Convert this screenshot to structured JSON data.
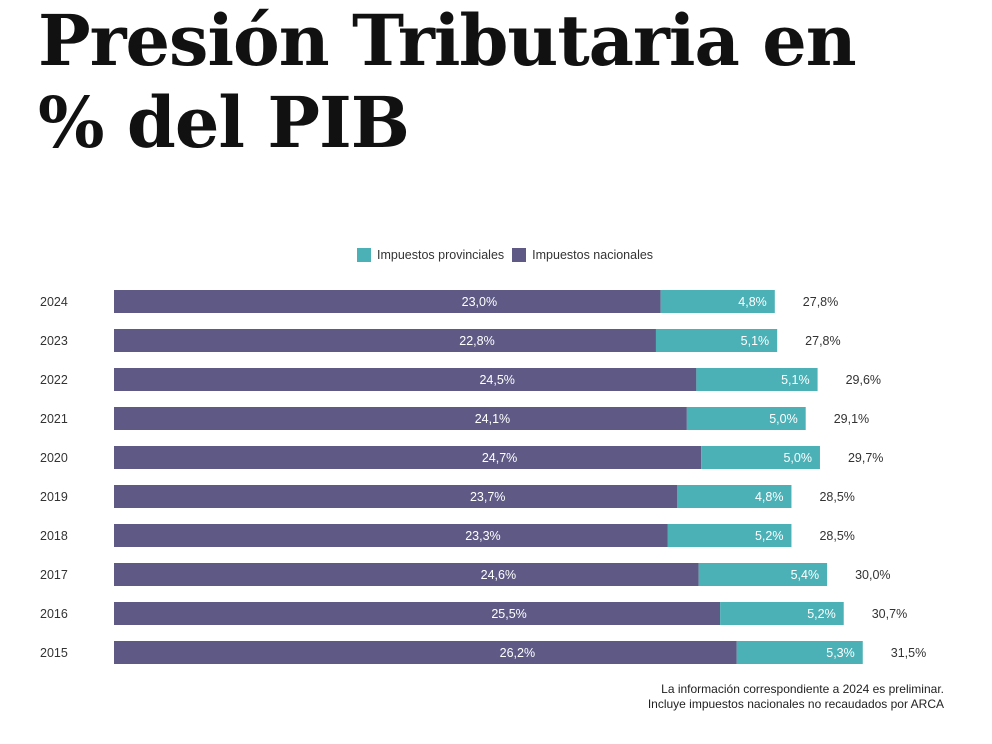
{
  "title": {
    "line1": "Presión Tributaria en",
    "line2": "% del PIB"
  },
  "colors": {
    "nacionales": "#5e5a85",
    "provinciales": "#4bb1b6"
  },
  "footnote": {
    "line1": "La información correspondiente a 2024 es preliminar.",
    "line2": "Incluye impuestos nacionales no recaudados por ARCA"
  },
  "chart_data": {
    "type": "bar",
    "orientation": "horizontal",
    "stacked": true,
    "title": "Presión Tributaria en % del PIB",
    "xlabel": "",
    "ylabel": "",
    "legend_position": "top-center",
    "grid": false,
    "categories": [
      "2024",
      "2023",
      "2022",
      "2021",
      "2020",
      "2019",
      "2018",
      "2017",
      "2016",
      "2015"
    ],
    "series": [
      {
        "name": "Impuestos nacionales",
        "values": [
          23.0,
          22.8,
          24.5,
          24.1,
          24.7,
          23.7,
          23.3,
          24.6,
          25.5,
          26.2
        ],
        "labels": [
          "23,0%",
          "22,8%",
          "24,5%",
          "24,1%",
          "24,7%",
          "23,7%",
          "23,3%",
          "24,6%",
          "25,5%",
          "26,2%"
        ]
      },
      {
        "name": "Impuestos provinciales",
        "values": [
          4.8,
          5.1,
          5.1,
          5.0,
          5.0,
          4.8,
          5.2,
          5.4,
          5.2,
          5.3
        ],
        "labels": [
          "4,8%",
          "5,1%",
          "5,1%",
          "5,0%",
          "5,0%",
          "4,8%",
          "5,2%",
          "5,4%",
          "5,2%",
          "5,3%"
        ]
      }
    ],
    "totals": [
      27.8,
      27.8,
      29.6,
      29.1,
      29.7,
      28.5,
      28.5,
      30.0,
      30.7,
      31.5
    ],
    "total_labels": [
      "27,8%",
      "27,8%",
      "29,6%",
      "29,1%",
      "29,7%",
      "28,5%",
      "28,5%",
      "30,0%",
      "30,7%",
      "31,5%"
    ],
    "legend": [
      "Impuestos provinciales",
      "Impuestos nacionales"
    ]
  }
}
